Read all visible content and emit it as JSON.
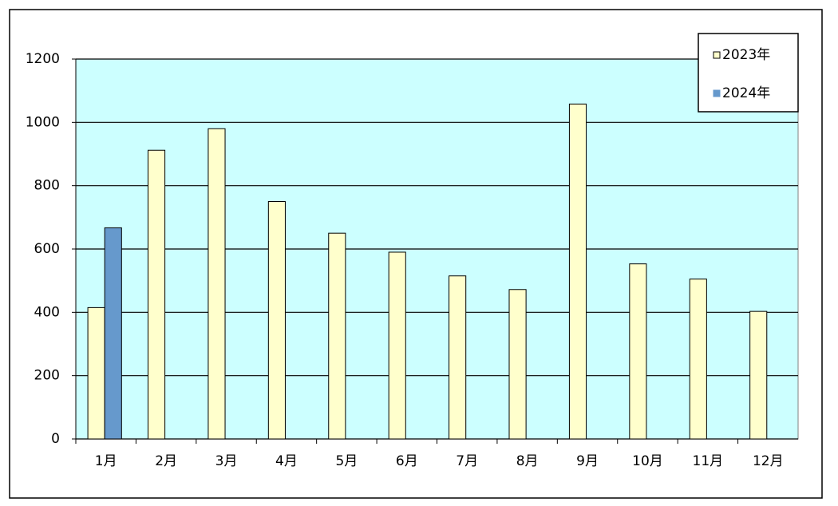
{
  "chart_data": {
    "type": "bar",
    "categories": [
      "1月",
      "2月",
      "3月",
      "4月",
      "5月",
      "6月",
      "7月",
      "8月",
      "9月",
      "10月",
      "11月",
      "12月"
    ],
    "series": [
      {
        "name": "2023年",
        "color": "#ffffcc",
        "values": [
          415,
          912,
          980,
          750,
          650,
          590,
          515,
          472,
          1058,
          553,
          505,
          403
        ]
      },
      {
        "name": "2024年",
        "color": "#6699cc",
        "values": [
          667,
          null,
          null,
          null,
          null,
          null,
          null,
          null,
          null,
          null,
          null,
          null
        ]
      }
    ],
    "ylim": [
      0,
      1200
    ],
    "yticks": [
      0,
      200,
      400,
      600,
      800,
      1000,
      1200
    ],
    "grid": true,
    "plot_background": "#ccffff",
    "legend": "top-right"
  }
}
